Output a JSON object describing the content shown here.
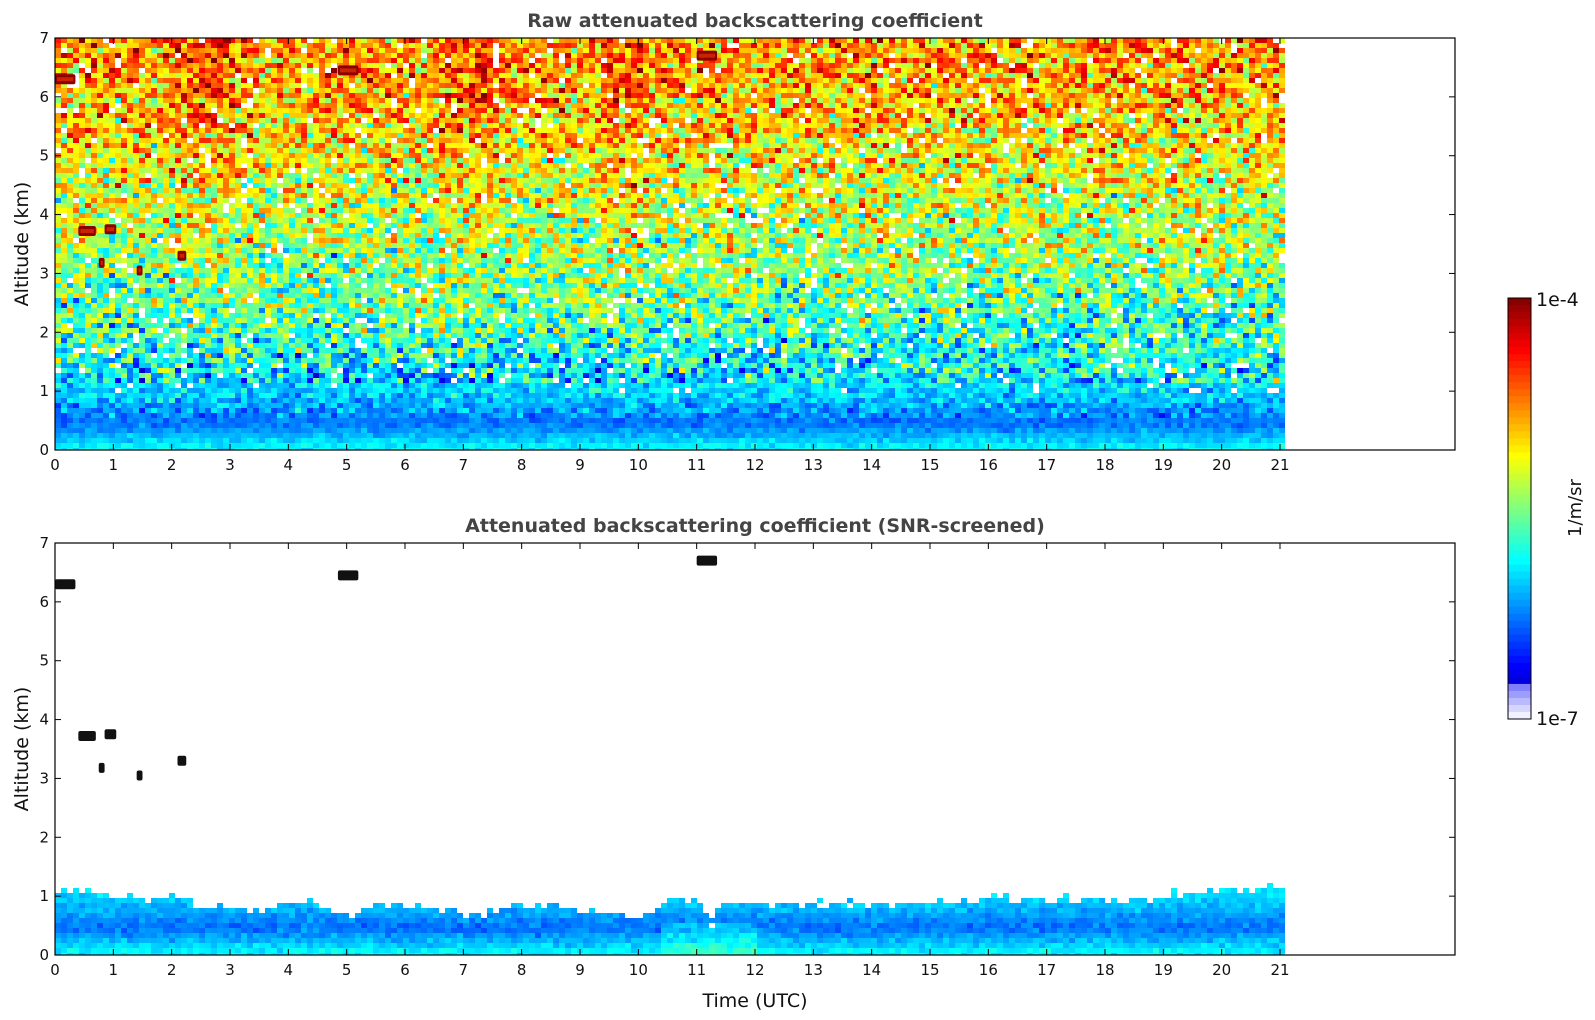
{
  "chart_data": [
    {
      "type": "heatmap",
      "title": "Raw attenuated backscattering coefficient",
      "xlabel": "",
      "ylabel": "Altitude (km)",
      "xlim": [
        0,
        24
      ],
      "ylim": [
        0,
        7
      ],
      "xticks": [
        "0",
        "1",
        "2",
        "3",
        "4",
        "5",
        "6",
        "7",
        "8",
        "9",
        "10",
        "11",
        "12",
        "13",
        "14",
        "15",
        "16",
        "17",
        "18",
        "19",
        "20",
        "21"
      ],
      "yticks": [
        "0",
        "1",
        "2",
        "3",
        "4",
        "5",
        "6",
        "7"
      ],
      "data_time_range": [
        0,
        21
      ],
      "profile": {
        "description_levels": "log10 backscatter by altitude band",
        "altitude_km": [
          0.1,
          0.3,
          0.5,
          1,
          2,
          3,
          4,
          5,
          6,
          7
        ],
        "log10_beta": [
          -5.9,
          -6.1,
          -6.3,
          -6.0,
          -5.7,
          -5.5,
          -5.3,
          -5.1,
          -4.9,
          -4.8
        ]
      },
      "cloud_features": [
        {
          "t_start": 0.0,
          "t_end": 0.35,
          "alt_km": 6.3
        },
        {
          "t_start": 4.85,
          "t_end": 5.2,
          "alt_km": 6.45
        },
        {
          "t_start": 11.0,
          "t_end": 11.35,
          "alt_km": 6.7
        },
        {
          "t_start": 0.4,
          "t_end": 0.7,
          "alt_km": 3.72
        },
        {
          "t_start": 0.85,
          "t_end": 1.05,
          "alt_km": 3.75
        },
        {
          "t_start": 0.75,
          "t_end": 0.85,
          "alt_km": 3.18
        },
        {
          "t_start": 1.4,
          "t_end": 1.5,
          "alt_km": 3.05
        },
        {
          "t_start": 2.1,
          "t_end": 2.25,
          "alt_km": 3.3
        }
      ]
    },
    {
      "type": "heatmap",
      "title": "Attenuated backscattering coefficient (SNR-screened)",
      "xlabel": "Time (UTC)",
      "ylabel": "Altitude (km)",
      "xlim": [
        0,
        24
      ],
      "ylim": [
        0,
        7
      ],
      "xticks": [
        "0",
        "1",
        "2",
        "3",
        "4",
        "5",
        "6",
        "7",
        "8",
        "9",
        "10",
        "11",
        "12",
        "13",
        "14",
        "15",
        "16",
        "17",
        "18",
        "19",
        "20",
        "21"
      ],
      "yticks": [
        "0",
        "1",
        "2",
        "3",
        "4",
        "5",
        "6",
        "7"
      ],
      "data_time_range": [
        0,
        21
      ],
      "boundary_layer_top_km": {
        "time_utc": [
          0,
          0.5,
          1,
          1.5,
          2,
          2.5,
          3,
          3.5,
          4,
          4.5,
          5,
          5.5,
          6,
          6.5,
          7,
          7.5,
          8,
          8.5,
          9,
          9.5,
          10,
          10.5,
          11,
          11.2,
          11.4,
          12,
          13,
          14,
          15,
          16,
          17,
          18,
          19,
          20,
          21
        ],
        "top": [
          1.1,
          1.2,
          1.0,
          1.0,
          1.05,
          0.85,
          0.85,
          0.8,
          0.95,
          0.9,
          0.75,
          0.9,
          0.85,
          0.85,
          0.75,
          0.8,
          0.9,
          0.9,
          0.75,
          0.75,
          0.7,
          1.0,
          1.0,
          0.55,
          1.0,
          0.95,
          0.9,
          0.9,
          0.95,
          1.0,
          1.0,
          1.0,
          1.05,
          1.15,
          1.2
        ]
      },
      "cloud_features": [
        {
          "t_start": 0.0,
          "t_end": 0.35,
          "alt_km": 6.3
        },
        {
          "t_start": 4.85,
          "t_end": 5.2,
          "alt_km": 6.45
        },
        {
          "t_start": 11.0,
          "t_end": 11.35,
          "alt_km": 6.7
        },
        {
          "t_start": 0.4,
          "t_end": 0.7,
          "alt_km": 3.72
        },
        {
          "t_start": 0.85,
          "t_end": 1.05,
          "alt_km": 3.75
        },
        {
          "t_start": 0.75,
          "t_end": 0.85,
          "alt_km": 3.18
        },
        {
          "t_start": 1.4,
          "t_end": 1.5,
          "alt_km": 3.05
        },
        {
          "t_start": 2.1,
          "t_end": 2.25,
          "alt_km": 3.3
        }
      ]
    }
  ],
  "colorbar": {
    "max_label": "1e-4",
    "min_label": "1e-7",
    "unit_label": "1/m/sr",
    "log10_range": [
      -7,
      -4
    ],
    "scale": "log",
    "colormap": "jet"
  }
}
